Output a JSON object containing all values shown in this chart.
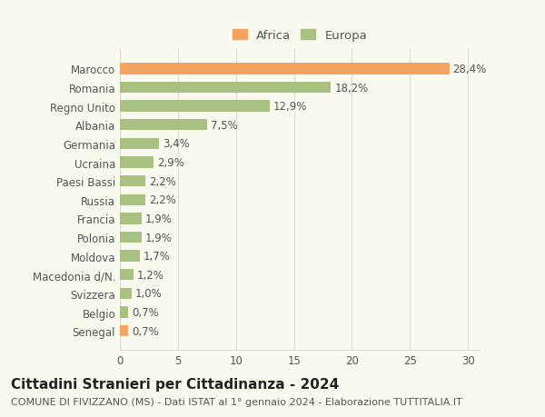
{
  "categories": [
    "Senegal",
    "Belgio",
    "Svizzera",
    "Macedonia d/N.",
    "Moldova",
    "Polonia",
    "Francia",
    "Russia",
    "Paesi Bassi",
    "Ucraina",
    "Germania",
    "Albania",
    "Regno Unito",
    "Romania",
    "Marocco"
  ],
  "values": [
    0.7,
    0.7,
    1.0,
    1.2,
    1.7,
    1.9,
    1.9,
    2.2,
    2.2,
    2.9,
    3.4,
    7.5,
    12.9,
    18.2,
    28.4
  ],
  "labels": [
    "0,7%",
    "0,7%",
    "1,0%",
    "1,2%",
    "1,7%",
    "1,9%",
    "1,9%",
    "2,2%",
    "2,2%",
    "2,9%",
    "3,4%",
    "7,5%",
    "12,9%",
    "18,2%",
    "28,4%"
  ],
  "colors": [
    "#f4a460",
    "#a8c080",
    "#a8c080",
    "#a8c080",
    "#a8c080",
    "#a8c080",
    "#a8c080",
    "#a8c080",
    "#a8c080",
    "#a8c080",
    "#a8c080",
    "#a8c080",
    "#a8c080",
    "#a8c080",
    "#f4a460"
  ],
  "continents": [
    "Africa",
    "Europa",
    "Europa",
    "Europa",
    "Europa",
    "Europa",
    "Europa",
    "Europa",
    "Europa",
    "Europa",
    "Europa",
    "Europa",
    "Europa",
    "Europa",
    "Africa"
  ],
  "africa_color": "#f4a460",
  "europa_color": "#a8c080",
  "title": "Cittadini Stranieri per Cittadinanza - 2024",
  "subtitle": "COMUNE DI FIVIZZANO (MS) - Dati ISTAT al 1° gennaio 2024 - Elaborazione TUTTITALIA.IT",
  "xlim": [
    0,
    31
  ],
  "xticks": [
    0,
    5,
    10,
    15,
    20,
    25,
    30
  ],
  "background_color": "#f9f9f0",
  "grid_color": "#ddddcc",
  "bar_height": 0.6,
  "label_fontsize": 8.5,
  "title_fontsize": 11,
  "subtitle_fontsize": 8
}
